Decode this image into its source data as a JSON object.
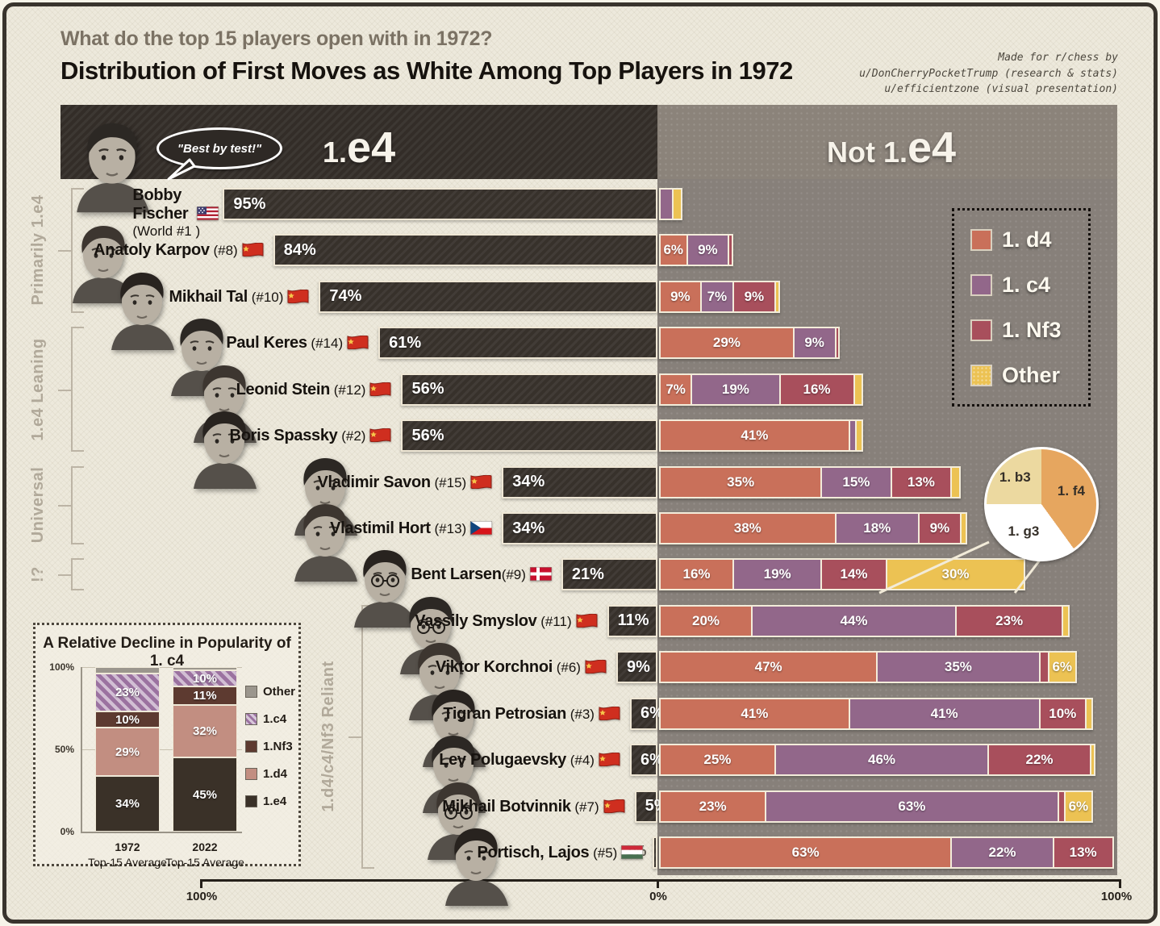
{
  "page": {
    "subtitle": "What do the top 15 players open with in 1972?",
    "title": "Distribution of First Moves as White Among Top Players in 1972",
    "credit_lines": [
      "Made for r/chess by",
      "u/DonCherryPocketTrump (research & stats)",
      "u/efficientzone (visual presentation)"
    ]
  },
  "header": {
    "left_label": "1.e4",
    "right_label": "Not 1.e4",
    "speech_bubble": "\"Best by test!\""
  },
  "legend": {
    "items": [
      {
        "move": "d4",
        "label": "1. d4",
        "color": "#c9705a"
      },
      {
        "move": "c4",
        "label": "1. c4",
        "color": "#92678a"
      },
      {
        "move": "nf3",
        "label": "1. Nf3",
        "color": "#a84f5c"
      },
      {
        "move": "other",
        "label": "Other",
        "color": "#ecc253"
      }
    ]
  },
  "side_groups": [
    {
      "label": "Primarily 1.e4",
      "row_start": 0,
      "row_end": 2
    },
    {
      "label": "1.e4 Leaning",
      "row_start": 3,
      "row_end": 5
    },
    {
      "label": "Universal",
      "row_start": 6,
      "row_end": 7
    },
    {
      "label": "!?",
      "row_start": 8,
      "row_end": 8
    },
    {
      "label": "1.d4/c4/Nf3 Reliant",
      "row_start": 9,
      "row_end": 14
    }
  ],
  "chart_data": {
    "type": "bar",
    "title": "Distribution of First Moves as White Among Top Players in 1972",
    "axis": {
      "left_max_label": "100%",
      "center_label": "0%",
      "right_max_label": "100%"
    },
    "move_colors": {
      "e4": "#37312b",
      "d4": "#c9705a",
      "c4": "#92678a",
      "nf3": "#a84f5c",
      "other": "#ecc253"
    },
    "players": [
      {
        "name": "Bobby Fischer",
        "rank": "(World #1 )",
        "country": "us",
        "stacked": true,
        "e4": {
          "value": 95,
          "label": "95%"
        },
        "not_e4": [
          {
            "move": "c4",
            "value": 3,
            "label": ""
          },
          {
            "move": "other",
            "value": 2,
            "label": ""
          }
        ]
      },
      {
        "name": "Anatoly Karpov",
        "rank": " (#8)",
        "country": "ussr",
        "e4": {
          "value": 84,
          "label": "84%"
        },
        "not_e4": [
          {
            "move": "d4",
            "value": 6,
            "label": "6%"
          },
          {
            "move": "c4",
            "value": 9,
            "label": "9%"
          },
          {
            "move": "nf3",
            "value": 1,
            "label": ""
          }
        ]
      },
      {
        "name": "Mikhail Tal",
        "rank": " (#10)",
        "country": "ussr",
        "e4": {
          "value": 74,
          "label": "74%"
        },
        "not_e4": [
          {
            "move": "d4",
            "value": 9,
            "label": "9%"
          },
          {
            "move": "c4",
            "value": 7,
            "label": "7%"
          },
          {
            "move": "nf3",
            "value": 9,
            "label": "9%"
          },
          {
            "move": "other",
            "value": 1,
            "label": ""
          }
        ]
      },
      {
        "name": "Paul Keres",
        "rank": " (#14)",
        "country": "ussr",
        "e4": {
          "value": 61,
          "label": "61%"
        },
        "not_e4": [
          {
            "move": "d4",
            "value": 29,
            "label": "29%"
          },
          {
            "move": "c4",
            "value": 9,
            "label": "9%"
          },
          {
            "move": "nf3",
            "value": 1,
            "label": ""
          }
        ]
      },
      {
        "name": "Leonid Stein",
        "rank": " (#12)",
        "country": "ussr",
        "e4": {
          "value": 56,
          "label": "56%"
        },
        "not_e4": [
          {
            "move": "d4",
            "value": 7,
            "label": "7%"
          },
          {
            "move": "c4",
            "value": 19,
            "label": "19%"
          },
          {
            "move": "nf3",
            "value": 16,
            "label": "16%"
          },
          {
            "move": "other",
            "value": 2,
            "label": ""
          }
        ]
      },
      {
        "name": "Boris Spassky",
        "rank": " (#2)",
        "country": "ussr",
        "e4": {
          "value": 56,
          "label": "56%"
        },
        "not_e4": [
          {
            "move": "d4",
            "value": 41,
            "label": "41%"
          },
          {
            "move": "c4",
            "value": 1.5,
            "label": ""
          },
          {
            "move": "other",
            "value": 1.5,
            "label": ""
          }
        ]
      },
      {
        "name": "Vladimir Savon",
        "rank": " (#15)",
        "country": "ussr",
        "e4": {
          "value": 34,
          "label": "34%"
        },
        "not_e4": [
          {
            "move": "d4",
            "value": 35,
            "label": "35%"
          },
          {
            "move": "c4",
            "value": 15,
            "label": "15%"
          },
          {
            "move": "nf3",
            "value": 13,
            "label": "13%"
          },
          {
            "move": "other",
            "value": 2,
            "label": ""
          }
        ]
      },
      {
        "name": "Vlastimil Hort",
        "rank": " (#13)",
        "country": "cz",
        "e4": {
          "value": 34,
          "label": "34%"
        },
        "not_e4": [
          {
            "move": "d4",
            "value": 38,
            "label": "38%"
          },
          {
            "move": "c4",
            "value": 18,
            "label": "18%"
          },
          {
            "move": "nf3",
            "value": 9,
            "label": "9%"
          },
          {
            "move": "other",
            "value": 1.5,
            "label": ""
          }
        ]
      },
      {
        "name": "Bent Larsen",
        "rank": "(#9)",
        "country": "dk",
        "glasses": true,
        "e4": {
          "value": 21,
          "label": "21%"
        },
        "not_e4": [
          {
            "move": "d4",
            "value": 16,
            "label": "16%"
          },
          {
            "move": "c4",
            "value": 19,
            "label": "19%"
          },
          {
            "move": "nf3",
            "value": 14,
            "label": "14%"
          },
          {
            "move": "other",
            "value": 30,
            "label": "30%"
          }
        ]
      },
      {
        "name": "Vassily Smyslov",
        "rank": " (#11)",
        "country": "ussr",
        "glasses": true,
        "e4": {
          "value": 11,
          "label": "11%"
        },
        "not_e4": [
          {
            "move": "d4",
            "value": 20,
            "label": "20%"
          },
          {
            "move": "c4",
            "value": 44,
            "label": "44%"
          },
          {
            "move": "nf3",
            "value": 23,
            "label": "23%"
          },
          {
            "move": "other",
            "value": 1.5,
            "label": ""
          }
        ]
      },
      {
        "name": "Viktor Korchnoi",
        "rank": " (#6)",
        "country": "ussr",
        "e4": {
          "value": 9,
          "label": "9%"
        },
        "not_e4": [
          {
            "move": "d4",
            "value": 47,
            "label": "47%"
          },
          {
            "move": "c4",
            "value": 35,
            "label": "35%"
          },
          {
            "move": "nf3",
            "value": 2,
            "label": ""
          },
          {
            "move": "other",
            "value": 6,
            "label": "6%"
          }
        ]
      },
      {
        "name": "Tigran Petrosian",
        "rank": " (#3)",
        "country": "ussr",
        "e4": {
          "value": 6,
          "label": "6%"
        },
        "not_e4": [
          {
            "move": "d4",
            "value": 41,
            "label": "41%"
          },
          {
            "move": "c4",
            "value": 41,
            "label": "41%"
          },
          {
            "move": "nf3",
            "value": 10,
            "label": "10%"
          },
          {
            "move": "other",
            "value": 1.5,
            "label": ""
          }
        ]
      },
      {
        "name": "Lev Polugaevsky",
        "rank": " (#4)",
        "country": "ussr",
        "e4": {
          "value": 6,
          "label": "6%"
        },
        "not_e4": [
          {
            "move": "d4",
            "value": 25,
            "label": "25%"
          },
          {
            "move": "c4",
            "value": 46,
            "label": "46%"
          },
          {
            "move": "nf3",
            "value": 22,
            "label": "22%"
          },
          {
            "move": "other",
            "value": 1,
            "label": ""
          }
        ]
      },
      {
        "name": "Mikhail Botvinnik",
        "rank": " (#7)",
        "country": "ussr",
        "glasses": true,
        "e4": {
          "value": 5,
          "label": "5%"
        },
        "not_e4": [
          {
            "move": "d4",
            "value": 23,
            "label": "23%"
          },
          {
            "move": "c4",
            "value": 63,
            "label": "63%"
          },
          {
            "move": "nf3",
            "value": 1.5,
            "label": ""
          },
          {
            "move": "other",
            "value": 6,
            "label": "6%"
          }
        ]
      },
      {
        "name": "Portisch, Lajos",
        "rank": " (#5)",
        "country": "hu",
        "e4": {
          "value": 1,
          "label": "1%",
          "label_outside": true
        },
        "not_e4": [
          {
            "move": "d4",
            "value": 63,
            "label": "63%"
          },
          {
            "move": "c4",
            "value": 22,
            "label": "22%"
          },
          {
            "move": "nf3",
            "value": 13,
            "label": "13%"
          }
        ]
      }
    ],
    "pie": {
      "note": "breakdown of Bent Larsen's 30% Other, clockwise from top",
      "slices": [
        {
          "label": "1. f4",
          "value": 40,
          "color": "#e6a65f"
        },
        {
          "label": "1. g3",
          "value": 35,
          "color": "#ffffff"
        },
        {
          "label": "1. b3",
          "value": 25,
          "color": "#ecd9a0"
        }
      ]
    }
  },
  "inset_chart": {
    "type": "stacked-bar",
    "title": "A Relative Decline in Popularity of 1. c4",
    "categories": [
      "1972",
      "2022"
    ],
    "category_sublabel": "Top-15 Average",
    "y_ticks": [
      "0%",
      "50%",
      "100%"
    ],
    "series": [
      {
        "name": "1.e4",
        "color": "#3a3128",
        "values": [
          34,
          45
        ],
        "labels": [
          "34%",
          "45%"
        ]
      },
      {
        "name": "1.d4",
        "color": "#c28e81",
        "values": [
          29,
          32
        ],
        "labels": [
          "29%",
          "32%"
        ]
      },
      {
        "name": "1.Nf3",
        "color": "#5d3a30",
        "values": [
          10,
          11
        ],
        "labels": [
          "10%",
          "11%"
        ]
      },
      {
        "name": "1.c4",
        "color": "#9b72a0",
        "hatched": true,
        "values": [
          23,
          10
        ],
        "labels": [
          "23%",
          "10%"
        ]
      },
      {
        "name": "Other",
        "color": "#9b968d",
        "values": [
          4,
          2
        ],
        "labels": [
          "",
          ""
        ]
      }
    ],
    "legend_order": [
      "Other",
      "1.c4",
      "1.Nf3",
      "1.d4",
      "1.e4"
    ]
  }
}
